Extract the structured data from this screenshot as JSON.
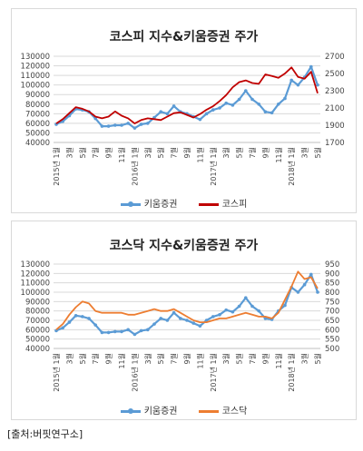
{
  "source_note": "[출처:버핏연구소]",
  "chart_data": [
    {
      "type": "line",
      "title": "코스피 지수&키움증권 주가",
      "x_tick_labels": [
        "2015년 1월",
        "3월",
        "5월",
        "7월",
        "9월",
        "11월",
        "2016년 1월",
        "3월",
        "5월",
        "7월",
        "9월",
        "11월",
        "2017년 1월",
        "3월",
        "5월",
        "7월",
        "9월",
        "11월",
        "2018년 1월",
        "3월",
        "5월"
      ],
      "left_axis": {
        "min": 40000,
        "max": 130000,
        "step": 10000,
        "labels": [
          "40000",
          "50000",
          "60000",
          "70000",
          "80000",
          "90000",
          "100000",
          "110000",
          "120000",
          "130000"
        ]
      },
      "right_axis": {
        "min": 1700,
        "max": 2700,
        "step": 200,
        "labels": [
          "1700",
          "1900",
          "2100",
          "2300",
          "2500",
          "2700"
        ]
      },
      "series": [
        {
          "name": "키움증권",
          "axis": "left",
          "color": "#5b9bd5",
          "marker": true,
          "values": [
            59000,
            62000,
            68000,
            75000,
            74000,
            72000,
            65000,
            57000,
            57000,
            58000,
            58000,
            60000,
            55000,
            59000,
            60000,
            66000,
            72000,
            70000,
            78000,
            72000,
            70000,
            67000,
            64000,
            70000,
            74000,
            76000,
            81000,
            79000,
            85000,
            94000,
            85000,
            80000,
            72000,
            71000,
            80000,
            86000,
            105000,
            100000,
            108000,
            119000,
            100000
          ]
        },
        {
          "name": "코스피",
          "axis": "right",
          "color": "#c00000",
          "marker": false,
          "values": [
            1920,
            1970,
            2040,
            2110,
            2090,
            2060,
            2000,
            1980,
            2000,
            2060,
            2010,
            1980,
            1920,
            1960,
            1980,
            1970,
            1960,
            2000,
            2040,
            2050,
            2020,
            1990,
            2030,
            2080,
            2120,
            2180,
            2250,
            2340,
            2400,
            2420,
            2390,
            2380,
            2490,
            2470,
            2450,
            2500,
            2570,
            2460,
            2440,
            2520,
            2270
          ]
        }
      ]
    },
    {
      "type": "line",
      "title": "코스닥 지수&키움증권 주가",
      "x_tick_labels": [
        "2015년 1월",
        "3월",
        "5월",
        "7월",
        "9월",
        "11월",
        "2016년 1월",
        "3월",
        "5월",
        "7월",
        "9월",
        "11월",
        "2017년 1월",
        "3월",
        "5월",
        "7월",
        "9월",
        "11월",
        "2018년 1월",
        "3월",
        "5월"
      ],
      "left_axis": {
        "min": 40000,
        "max": 130000,
        "step": 10000,
        "labels": [
          "40000",
          "50000",
          "60000",
          "70000",
          "80000",
          "90000",
          "100000",
          "110000",
          "120000",
          "130000"
        ]
      },
      "right_axis": {
        "min": 500,
        "max": 950,
        "step": 50,
        "labels": [
          "500",
          "550",
          "600",
          "650",
          "700",
          "750",
          "800",
          "850",
          "900",
          "950"
        ]
      },
      "series": [
        {
          "name": "키움증권",
          "axis": "left",
          "color": "#5b9bd5",
          "marker": true,
          "values": [
            59000,
            62000,
            68000,
            75000,
            74000,
            72000,
            65000,
            57000,
            57000,
            58000,
            58000,
            60000,
            55000,
            59000,
            60000,
            66000,
            72000,
            70000,
            78000,
            72000,
            70000,
            67000,
            64000,
            70000,
            74000,
            76000,
            81000,
            79000,
            85000,
            94000,
            85000,
            80000,
            72000,
            71000,
            80000,
            86000,
            105000,
            100000,
            108000,
            119000,
            100000
          ]
        },
        {
          "name": "코스닥",
          "axis": "right",
          "color": "#ed7d31",
          "marker": false,
          "values": [
            600,
            630,
            680,
            720,
            750,
            740,
            700,
            690,
            690,
            690,
            690,
            680,
            680,
            690,
            700,
            710,
            700,
            700,
            710,
            690,
            670,
            650,
            640,
            640,
            650,
            660,
            660,
            670,
            680,
            690,
            680,
            670,
            670,
            660,
            690,
            760,
            830,
            910,
            870,
            880,
            820
          ]
        }
      ]
    }
  ]
}
